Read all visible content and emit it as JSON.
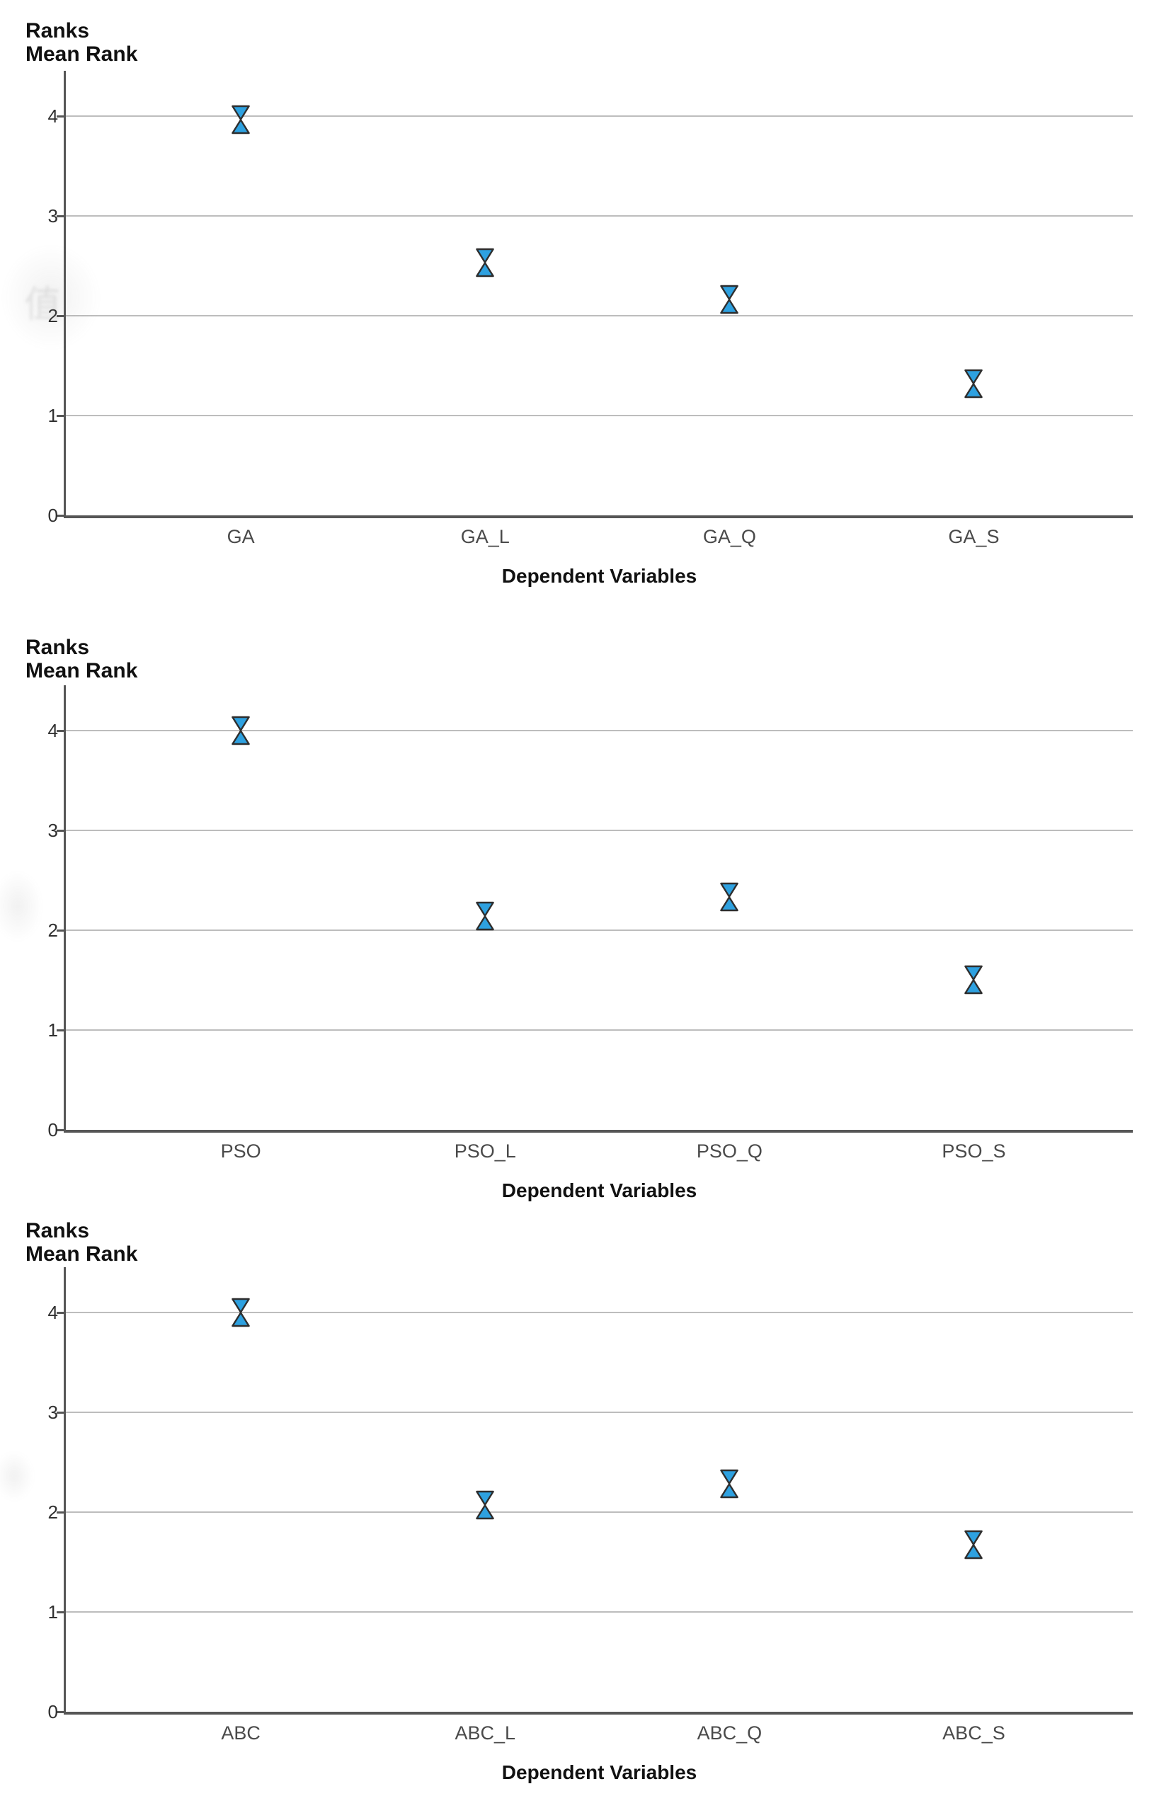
{
  "colors": {
    "marker_fill": "#2EA1E0",
    "marker_outline": "#2E2E2E",
    "gridline": "#BDBDBD",
    "axis": "#565656",
    "title_text": "#111111",
    "tick_text": "#303030",
    "category_text": "#4A4A4A"
  },
  "chart_data": [
    {
      "type": "scatter",
      "marker": "hourglass",
      "title": "Ranks",
      "subtitle": "Mean Rank",
      "xlabel": "Dependent Variables",
      "ylabel": "",
      "ylim": [
        0,
        4.45
      ],
      "y_ticks": [
        0,
        1,
        2,
        3,
        4
      ],
      "grid": "horizontal",
      "legend": "none",
      "categories": [
        "GA",
        "GA_L",
        "GA_Q",
        "GA_S"
      ],
      "values": [
        3.96,
        2.53,
        2.16,
        1.32
      ]
    },
    {
      "type": "scatter",
      "marker": "hourglass",
      "title": "Ranks",
      "subtitle": "Mean Rank",
      "xlabel": "Dependent Variables",
      "ylabel": "",
      "ylim": [
        0,
        4.45
      ],
      "y_ticks": [
        0,
        1,
        2,
        3,
        4
      ],
      "grid": "horizontal",
      "legend": "none",
      "categories": [
        "PSO",
        "PSO_L",
        "PSO_Q",
        "PSO_S"
      ],
      "values": [
        4.0,
        2.14,
        2.33,
        1.5
      ]
    },
    {
      "type": "scatter",
      "marker": "hourglass",
      "title": "Ranks",
      "subtitle": "Mean Rank",
      "xlabel": "Dependent Variables",
      "ylabel": "",
      "ylim": [
        0,
        4.45
      ],
      "y_ticks": [
        0,
        1,
        2,
        3,
        4
      ],
      "grid": "horizontal",
      "legend": "none",
      "categories": [
        "ABC",
        "ABC_L",
        "ABC_Q",
        "ABC_S"
      ],
      "values": [
        4.0,
        2.07,
        2.28,
        1.67
      ]
    }
  ]
}
